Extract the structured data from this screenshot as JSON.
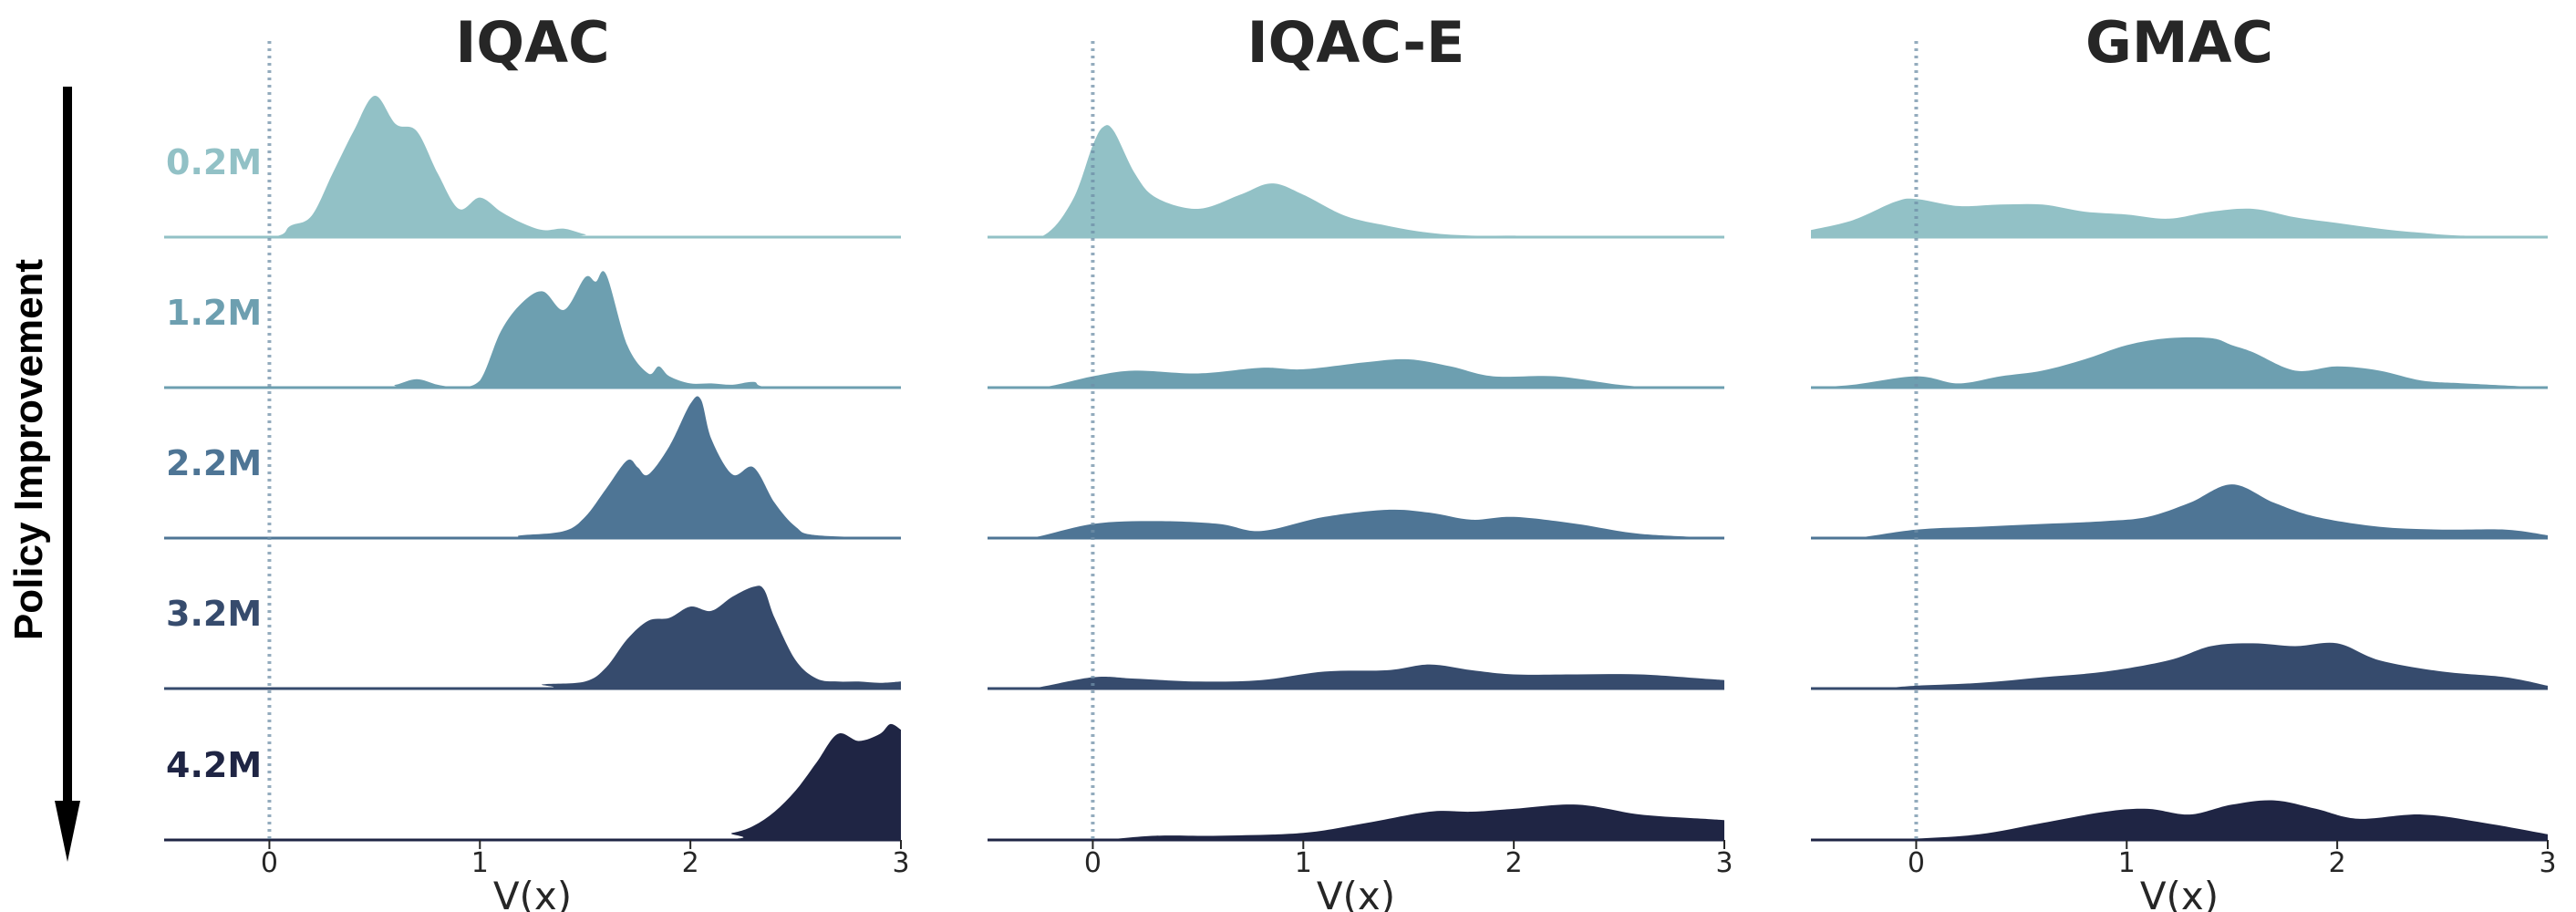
{
  "figure": {
    "arrow_label": "Policy Improvement",
    "row_labels": [
      "0.2M",
      "1.2M",
      "2.2M",
      "3.2M",
      "4.2M"
    ],
    "row_colors": [
      "#92c1c6",
      "#6d9fb0",
      "#4e7595",
      "#364b6d",
      "#1f2544"
    ]
  },
  "chart_data": [
    {
      "type": "area",
      "title": "IQAC",
      "xlabel": "V(x)",
      "ylabel": "",
      "xlim": [
        -0.5,
        3
      ],
      "x_ticks": [
        "0",
        "1",
        "2",
        "3"
      ],
      "reference_line": 0,
      "series": [
        {
          "name": "0.2M",
          "x": [
            -0.5,
            0.0,
            0.1,
            0.2,
            0.3,
            0.4,
            0.5,
            0.6,
            0.7,
            0.8,
            0.9,
            1.0,
            1.1,
            1.2,
            1.3,
            1.4,
            1.5,
            1.6,
            3.0
          ],
          "y": [
            0,
            0,
            0.08,
            0.15,
            0.45,
            0.75,
            1.0,
            0.8,
            0.75,
            0.45,
            0.2,
            0.28,
            0.18,
            0.1,
            0.05,
            0.06,
            0.02,
            0,
            0
          ]
        },
        {
          "name": "1.2M",
          "x": [
            -0.5,
            0.5,
            0.6,
            0.7,
            0.8,
            0.9,
            1.0,
            1.1,
            1.2,
            1.3,
            1.4,
            1.5,
            1.55,
            1.6,
            1.7,
            1.8,
            1.85,
            1.9,
            2.0,
            2.1,
            2.2,
            2.3,
            2.4,
            3.0
          ],
          "y": [
            0,
            0,
            0.02,
            0.06,
            0.02,
            0,
            0.05,
            0.4,
            0.6,
            0.68,
            0.55,
            0.78,
            0.75,
            0.8,
            0.3,
            0.1,
            0.15,
            0.08,
            0.03,
            0.03,
            0.02,
            0.04,
            0,
            0
          ]
        },
        {
          "name": "2.2M",
          "x": [
            -0.5,
            1.0,
            1.2,
            1.4,
            1.5,
            1.6,
            1.7,
            1.75,
            1.8,
            1.9,
            2.0,
            2.05,
            2.1,
            2.2,
            2.3,
            2.4,
            2.5,
            2.6,
            3.0
          ],
          "y": [
            0,
            0,
            0.02,
            0.05,
            0.15,
            0.35,
            0.55,
            0.5,
            0.45,
            0.65,
            0.95,
            0.98,
            0.7,
            0.45,
            0.5,
            0.25,
            0.08,
            0.02,
            0
          ]
        },
        {
          "name": "3.2M",
          "x": [
            -0.5,
            1.2,
            1.3,
            1.5,
            1.6,
            1.7,
            1.8,
            1.9,
            2.0,
            2.1,
            2.2,
            2.3,
            2.35,
            2.4,
            2.5,
            2.6,
            2.7,
            2.8,
            2.9,
            3.0
          ],
          "y": [
            0,
            0,
            0.03,
            0.05,
            0.15,
            0.35,
            0.48,
            0.5,
            0.58,
            0.55,
            0.65,
            0.72,
            0.7,
            0.5,
            0.2,
            0.07,
            0.05,
            0.05,
            0.04,
            0.05
          ]
        },
        {
          "name": "4.2M",
          "x": [
            -0.5,
            2.0,
            2.2,
            2.3,
            2.4,
            2.5,
            2.6,
            2.7,
            2.8,
            2.9,
            2.95,
            3.0
          ],
          "y": [
            0,
            0,
            0.05,
            0.1,
            0.2,
            0.35,
            0.55,
            0.75,
            0.7,
            0.75,
            0.82,
            0.78
          ]
        }
      ]
    },
    {
      "type": "area",
      "title": "IQAC-E",
      "xlabel": "V(x)",
      "ylabel": "",
      "xlim": [
        -0.5,
        3
      ],
      "x_ticks": [
        "0",
        "1",
        "2",
        "3"
      ],
      "reference_line": 0,
      "series": [
        {
          "name": "0.2M",
          "x": [
            -0.5,
            -0.25,
            -0.1,
            0.0,
            0.05,
            0.1,
            0.2,
            0.3,
            0.5,
            0.7,
            0.85,
            1.0,
            1.2,
            1.4,
            1.6,
            1.8,
            2.0,
            2.2,
            3.0
          ],
          "y": [
            0,
            0,
            0.25,
            0.65,
            0.78,
            0.75,
            0.45,
            0.28,
            0.2,
            0.3,
            0.38,
            0.3,
            0.15,
            0.08,
            0.03,
            0.01,
            0.01,
            0,
            0
          ]
        },
        {
          "name": "1.2M",
          "x": [
            -0.5,
            -0.25,
            0.0,
            0.2,
            0.5,
            0.8,
            1.0,
            1.3,
            1.5,
            1.7,
            1.9,
            2.2,
            2.5,
            2.7,
            3.0
          ],
          "y": [
            0,
            0,
            0.08,
            0.12,
            0.1,
            0.14,
            0.13,
            0.18,
            0.2,
            0.15,
            0.08,
            0.08,
            0.02,
            0,
            0
          ]
        },
        {
          "name": "2.2M",
          "x": [
            -0.5,
            -0.3,
            0.0,
            0.3,
            0.6,
            0.8,
            1.1,
            1.4,
            1.6,
            1.8,
            2.0,
            2.3,
            2.6,
            3.0
          ],
          "y": [
            0,
            0,
            0.1,
            0.12,
            0.1,
            0.05,
            0.15,
            0.2,
            0.18,
            0.13,
            0.15,
            0.1,
            0.03,
            0
          ]
        },
        {
          "name": "3.2M",
          "x": [
            -0.5,
            -0.3,
            0.0,
            0.2,
            0.5,
            0.8,
            1.1,
            1.4,
            1.6,
            1.8,
            2.0,
            2.3,
            2.6,
            2.9,
            3.0
          ],
          "y": [
            0,
            0,
            0.08,
            0.07,
            0.05,
            0.06,
            0.12,
            0.13,
            0.17,
            0.13,
            0.1,
            0.1,
            0.1,
            0.07,
            0.06
          ]
        },
        {
          "name": "4.2M",
          "x": [
            -0.5,
            0.0,
            0.3,
            0.6,
            1.0,
            1.3,
            1.6,
            1.8,
            2.0,
            2.3,
            2.6,
            2.9,
            3.0
          ],
          "y": [
            0,
            0,
            0.03,
            0.03,
            0.05,
            0.12,
            0.2,
            0.2,
            0.22,
            0.25,
            0.18,
            0.15,
            0.14
          ]
        }
      ]
    },
    {
      "type": "area",
      "title": "GMAC",
      "xlabel": "V(x)",
      "ylabel": "",
      "xlim": [
        -0.5,
        3
      ],
      "x_ticks": [
        "0",
        "1",
        "2",
        "3"
      ],
      "reference_line": 0,
      "series": [
        {
          "name": "0.2M",
          "x": [
            -0.5,
            -0.3,
            -0.1,
            0.0,
            0.2,
            0.4,
            0.6,
            0.8,
            1.0,
            1.2,
            1.4,
            1.6,
            1.8,
            2.0,
            2.2,
            2.4,
            2.6,
            3.0
          ],
          "y": [
            0.05,
            0.12,
            0.25,
            0.27,
            0.22,
            0.23,
            0.23,
            0.18,
            0.16,
            0.13,
            0.18,
            0.2,
            0.14,
            0.1,
            0.06,
            0.03,
            0.01,
            0
          ]
        },
        {
          "name": "1.2M",
          "x": [
            -0.5,
            -0.3,
            0.0,
            0.2,
            0.4,
            0.6,
            0.8,
            1.0,
            1.2,
            1.4,
            1.5,
            1.6,
            1.8,
            2.0,
            2.2,
            2.4,
            2.6,
            3.0
          ],
          "y": [
            0,
            0.02,
            0.08,
            0.03,
            0.08,
            0.12,
            0.2,
            0.3,
            0.35,
            0.35,
            0.3,
            0.25,
            0.12,
            0.15,
            0.12,
            0.05,
            0.03,
            0
          ]
        },
        {
          "name": "2.2M",
          "x": [
            -0.5,
            -0.3,
            0.0,
            0.3,
            0.6,
            0.9,
            1.1,
            1.3,
            1.5,
            1.7,
            1.9,
            2.2,
            2.5,
            2.8,
            3.0
          ],
          "y": [
            0,
            0,
            0.06,
            0.08,
            0.1,
            0.12,
            0.15,
            0.25,
            0.38,
            0.25,
            0.15,
            0.08,
            0.06,
            0.06,
            0.02
          ]
        },
        {
          "name": "3.2M",
          "x": [
            -0.5,
            -0.2,
            0.0,
            0.3,
            0.6,
            0.9,
            1.2,
            1.4,
            1.6,
            1.8,
            2.0,
            2.2,
            2.5,
            2.8,
            3.0
          ],
          "y": [
            0,
            0,
            0.02,
            0.04,
            0.08,
            0.12,
            0.2,
            0.3,
            0.32,
            0.3,
            0.32,
            0.2,
            0.12,
            0.08,
            0.02
          ]
        },
        {
          "name": "4.2M",
          "x": [
            -0.5,
            -0.2,
            0.0,
            0.3,
            0.6,
            0.9,
            1.1,
            1.3,
            1.5,
            1.7,
            1.9,
            2.1,
            2.4,
            2.7,
            3.0
          ],
          "y": [
            0,
            0,
            0.01,
            0.04,
            0.12,
            0.2,
            0.22,
            0.18,
            0.25,
            0.28,
            0.22,
            0.15,
            0.18,
            0.12,
            0.04
          ]
        }
      ]
    }
  ]
}
